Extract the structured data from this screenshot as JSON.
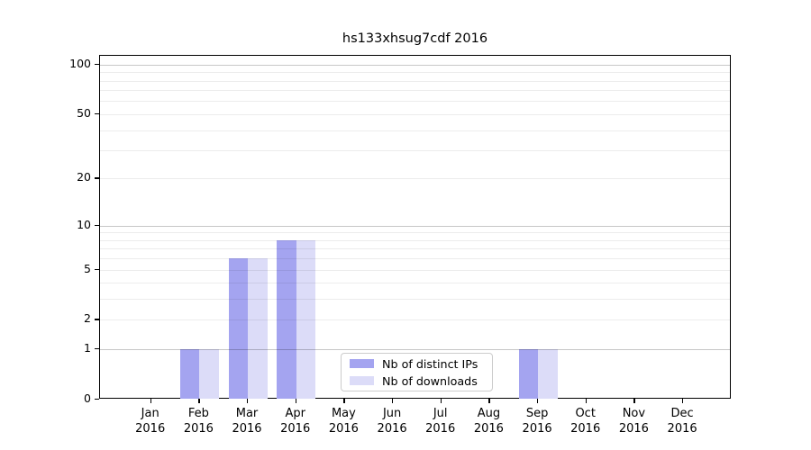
{
  "title": "hs133xhsug7cdf 2016",
  "colors": {
    "distinct_ips": "#a4a4f0",
    "downloads": "#dcdcf8",
    "axis": "#000000",
    "legend_border": "#cccccc"
  },
  "chart_data": {
    "type": "bar",
    "title": "hs133xhsug7cdf 2016",
    "categories": [
      "Jan",
      "Feb",
      "Mar",
      "Apr",
      "May",
      "Jun",
      "Jul",
      "Aug",
      "Sep",
      "Oct",
      "Nov",
      "Dec"
    ],
    "x_year": "2016",
    "series": [
      {
        "key": "distinct-ips",
        "name": "Nb of distinct IPs",
        "color": "#a4a4f0",
        "values": [
          0,
          1,
          6,
          8,
          0,
          0,
          0,
          0,
          1,
          0,
          0,
          0
        ]
      },
      {
        "key": "downloads",
        "name": "Nb of downloads",
        "color": "#dcdcf8",
        "values": [
          0,
          1,
          6,
          8,
          0,
          0,
          0,
          0,
          1,
          0,
          0,
          0
        ]
      }
    ],
    "yscale": "log1p",
    "yticks": [
      0,
      1,
      2,
      5,
      10,
      20,
      50,
      100
    ],
    "gridlines_major": [
      1,
      10,
      100
    ],
    "gridlines_minor": [
      2,
      3,
      4,
      5,
      6,
      7,
      8,
      9,
      20,
      30,
      40,
      50,
      60,
      70,
      80,
      90
    ],
    "ylim": [
      0,
      113
    ],
    "grid": true,
    "legend_position": "lower center-right"
  }
}
